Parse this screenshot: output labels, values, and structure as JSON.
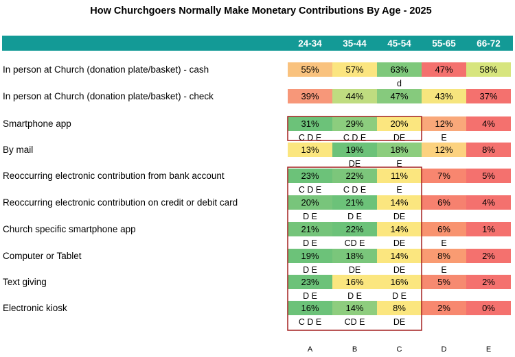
{
  "chart_data": {
    "type": "table",
    "title": "How Churchgoers Normally Make Monetary Contributions By Age - 2025",
    "columns": [
      "24-34",
      "35-44",
      "45-54",
      "55-65",
      "66-72"
    ],
    "column_letters": [
      "A",
      "B",
      "C",
      "D",
      "E"
    ],
    "rows": [
      {
        "label": "In person at Church (donation plate/basket) - cash",
        "values": [
          "55%",
          "57%",
          "63%",
          "47%",
          "58%"
        ],
        "colors": [
          "#f9c27e",
          "#fbe580",
          "#7ec87b",
          "#f4716e",
          "#d7e57e"
        ],
        "sig": [
          "",
          "",
          "d",
          "",
          ""
        ]
      },
      {
        "label": "In person at Church (donation plate/basket)  - check",
        "values": [
          "39%",
          "44%",
          "47%",
          "43%",
          "37%"
        ],
        "colors": [
          "#f79779",
          "#bfdc80",
          "#86ca7d",
          "#f6e57e",
          "#f4716e"
        ],
        "sig": [
          "",
          "",
          "",
          "",
          ""
        ]
      },
      {
        "label": "Smartphone app",
        "values": [
          "31%",
          "29%",
          "20%",
          "12%",
          "4%"
        ],
        "colors": [
          "#6cc279",
          "#8ccd7e",
          "#fbe67f",
          "#f9a87a",
          "#f4716e"
        ],
        "sig": [
          "C D E",
          "C D E",
          "DE",
          "E",
          ""
        ]
      },
      {
        "label": "By mail",
        "values": [
          "13%",
          "19%",
          "18%",
          "12%",
          "8%"
        ],
        "colors": [
          "#fbe67f",
          "#6cc279",
          "#8ccd7e",
          "#fcd27f",
          "#f4716e"
        ],
        "sig": [
          "",
          "DE",
          "E",
          "",
          ""
        ]
      },
      {
        "label": "Reoccurring electronic contribution from bank account",
        "values": [
          "23%",
          "22%",
          "11%",
          "7%",
          "5%"
        ],
        "colors": [
          "#6cc279",
          "#7cc67b",
          "#fbe67f",
          "#f8866f",
          "#f4716e"
        ],
        "sig": [
          "C D E",
          "C D E",
          "E",
          "",
          ""
        ]
      },
      {
        "label": "Reoccurring electronic contribution on credit or debit card",
        "values": [
          "20%",
          "21%",
          "14%",
          "6%",
          "4%"
        ],
        "colors": [
          "#78c57b",
          "#6cc279",
          "#fbe67f",
          "#f6816f",
          "#f4716e"
        ],
        "sig": [
          "D E",
          "D E",
          "DE",
          "",
          ""
        ]
      },
      {
        "label": "Church specific smartphone app",
        "values": [
          "21%",
          "22%",
          "14%",
          "6%",
          "1%"
        ],
        "colors": [
          "#74c47a",
          "#6cc279",
          "#fbe67f",
          "#f8936f",
          "#f4716e"
        ],
        "sig": [
          "D E",
          "CD E",
          "DE",
          "E",
          ""
        ]
      },
      {
        "label": "Computer or Tablet",
        "values": [
          "19%",
          "18%",
          "14%",
          "8%",
          "2%"
        ],
        "colors": [
          "#6cc279",
          "#7ac67b",
          "#fbe67f",
          "#f99b72",
          "#f4716e"
        ],
        "sig": [
          "D E",
          "DE",
          "DE",
          "E",
          ""
        ]
      },
      {
        "label": "Text giving",
        "values": [
          "23%",
          "16%",
          "16%",
          "5%",
          "2%"
        ],
        "colors": [
          "#6cc279",
          "#fbe67f",
          "#fbe67f",
          "#f68a70",
          "#f4716e"
        ],
        "sig": [
          "D E",
          "D E",
          "D E",
          "",
          ""
        ]
      },
      {
        "label": "Electronic kiosk",
        "values": [
          "16%",
          "14%",
          "8%",
          "2%",
          "0%"
        ],
        "colors": [
          "#6cc279",
          "#8ecd7e",
          "#fbe67f",
          "#f7886f",
          "#f4716e"
        ],
        "sig": [
          "C D E",
          "CD E",
          "DE",
          "",
          ""
        ]
      }
    ],
    "colors": {
      "header_bar": "#139a96",
      "header_text": "#ffffff",
      "highlight_box": "#a31f1f"
    }
  }
}
